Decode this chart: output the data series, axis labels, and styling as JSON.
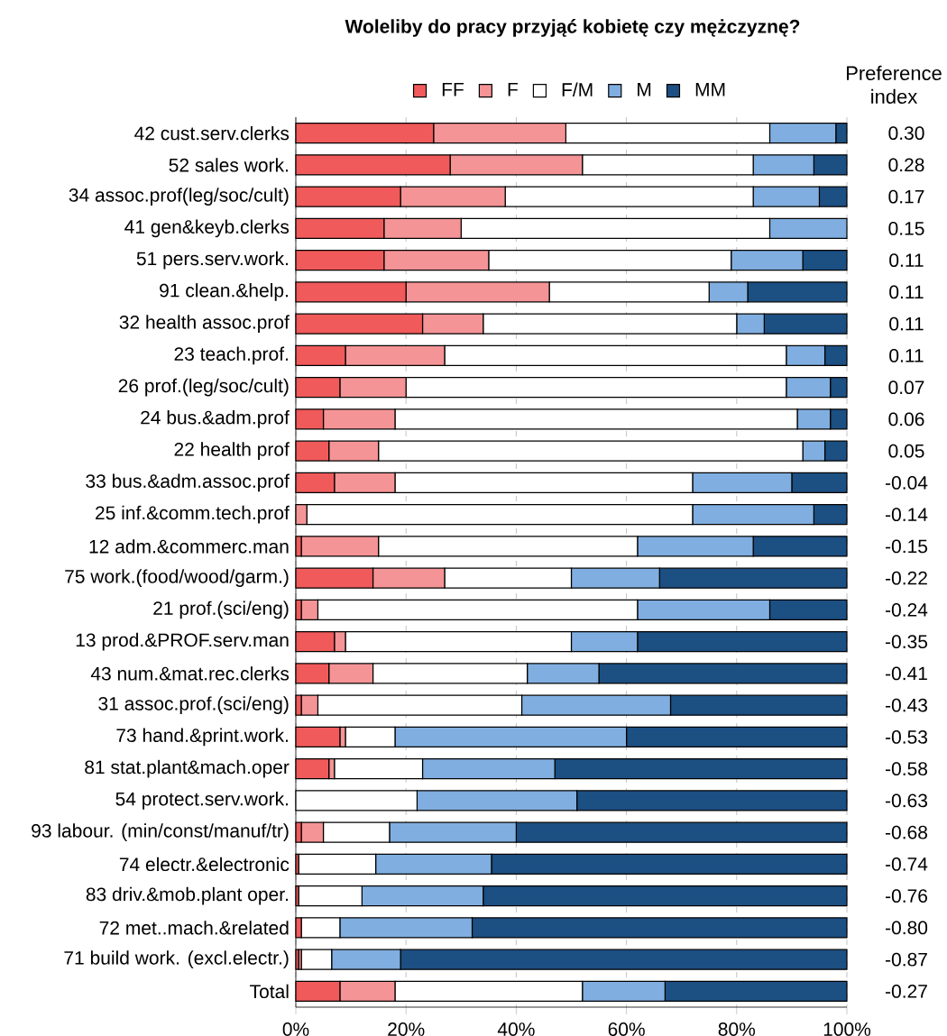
{
  "chart_data": {
    "type": "bar",
    "orientation": "horizontal",
    "stacked": true,
    "title": "Woleliby do pracy przyjąć kobietę czy mężczyznę?",
    "y2label": "Preference index",
    "categories": [
      "42 cust.serv.clerks",
      "52 sales work.",
      "34 assoc.prof(leg/soc/cult)",
      "41 gen&keyb.clerks",
      "51 pers.serv.work.",
      "91 clean.&help.",
      "32 health assoc.prof",
      "23 teach.prof.",
      "26 prof.(leg/soc/cult)",
      "24 bus.&adm.prof",
      "22 health prof",
      "33 bus.&adm.assoc.prof",
      "25 inf.&comm.tech.prof",
      "12 adm.&commerc.man",
      "75 work.(food/wood/garm.)",
      "21 prof.(sci/eng)",
      "13 prod.&PROF.serv.man",
      "43 num.&mat.rec.clerks",
      "31 assoc.prof.(sci/eng)",
      "73 hand.&print.work.",
      "81 stat.plant&mach.oper",
      "54 protect.serv.work.",
      "93 labour. (min/const/manuf/tr)",
      "74 electr.&electronic",
      "83 driv.&mob.plant oper.",
      "72 met..mach.&related",
      "71 build work. (excl.electr.)",
      "Total"
    ],
    "series": [
      {
        "name": "FF",
        "color": "#f05a5a",
        "values": [
          25,
          28,
          19,
          16,
          16,
          20,
          23,
          9,
          8,
          5,
          6,
          7,
          0,
          1,
          14,
          1,
          7,
          6,
          1,
          8,
          6,
          0,
          1,
          0.5,
          0.5,
          1,
          0.5,
          8
        ]
      },
      {
        "name": "F",
        "color": "#f49496",
        "values": [
          24,
          24,
          19,
          14,
          19,
          26,
          11,
          18,
          12,
          13,
          9,
          11,
          2,
          14,
          13,
          3,
          2,
          8,
          3,
          1,
          1,
          0,
          4,
          0,
          0,
          0,
          0.5,
          10
        ]
      },
      {
        "name": "F/M",
        "color": "#ffffff",
        "values": [
          37,
          31,
          45,
          56,
          44,
          29,
          46,
          62,
          69,
          73,
          77,
          54,
          70,
          47,
          23,
          58,
          41,
          28,
          37,
          9,
          16,
          22,
          12,
          14,
          11.5,
          7,
          5.5,
          34
        ]
      },
      {
        "name": "M",
        "color": "#80aee0",
        "values": [
          12,
          11,
          12,
          14,
          13,
          7,
          5,
          7,
          8,
          6,
          4,
          18,
          22,
          21,
          16,
          24,
          12,
          13,
          27,
          42,
          24,
          29,
          23,
          21,
          22,
          24,
          12.5,
          15
        ]
      },
      {
        "name": "MM",
        "color": "#1c4f82",
        "values": [
          2,
          6,
          5,
          0,
          8,
          18,
          15,
          4,
          3,
          3,
          4,
          10,
          6,
          17,
          34,
          14,
          38,
          45,
          32,
          40,
          53,
          49,
          60,
          64.5,
          66,
          68,
          81,
          33
        ]
      }
    ],
    "xlim": [
      0,
      100
    ],
    "xticks": [
      {
        "value": 0,
        "label": "0%"
      },
      {
        "value": 20,
        "label": "20%"
      },
      {
        "value": 40,
        "label": "40%"
      },
      {
        "value": 60,
        "label": "60%"
      },
      {
        "value": 80,
        "label": "80%"
      },
      {
        "value": 100,
        "label": "100%"
      }
    ],
    "grid": "x",
    "legend": "top",
    "annotations": [
      "0.30",
      "0.28",
      "0.17",
      "0.15",
      "0.11",
      "0.11",
      "0.11",
      "0.11",
      "0.07",
      "0.06",
      "0.05",
      "-0.04",
      "-0.14",
      "-0.15",
      "-0.22",
      "-0.24",
      "-0.35",
      "-0.41",
      "-0.43",
      "-0.53",
      "-0.58",
      "-0.63",
      "-0.68",
      "-0.74",
      "-0.76",
      "-0.80",
      "-0.87",
      "-0.27"
    ]
  }
}
